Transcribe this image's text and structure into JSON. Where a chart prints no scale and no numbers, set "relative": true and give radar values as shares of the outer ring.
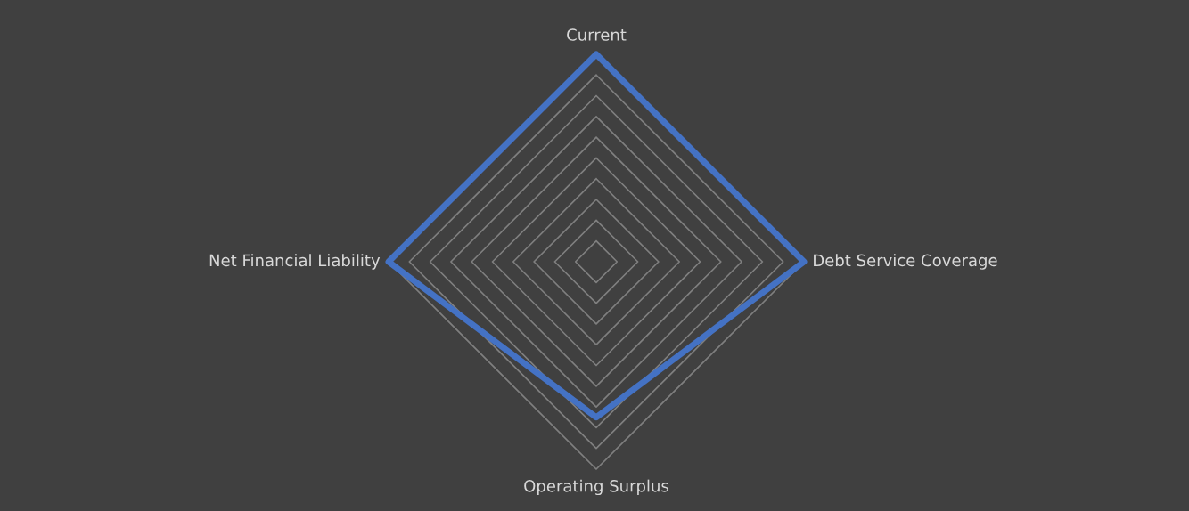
{
  "chart_data": {
    "type": "radar",
    "relative": true,
    "grid": true,
    "categories": [
      "Current",
      "Debt Service Coverage",
      "Operating Surplus",
      "Net Financial Liability"
    ],
    "series": [
      {
        "color": "#4472c4",
        "values": [
          1,
          1,
          0.75,
          1
        ]
      }
    ]
  }
}
